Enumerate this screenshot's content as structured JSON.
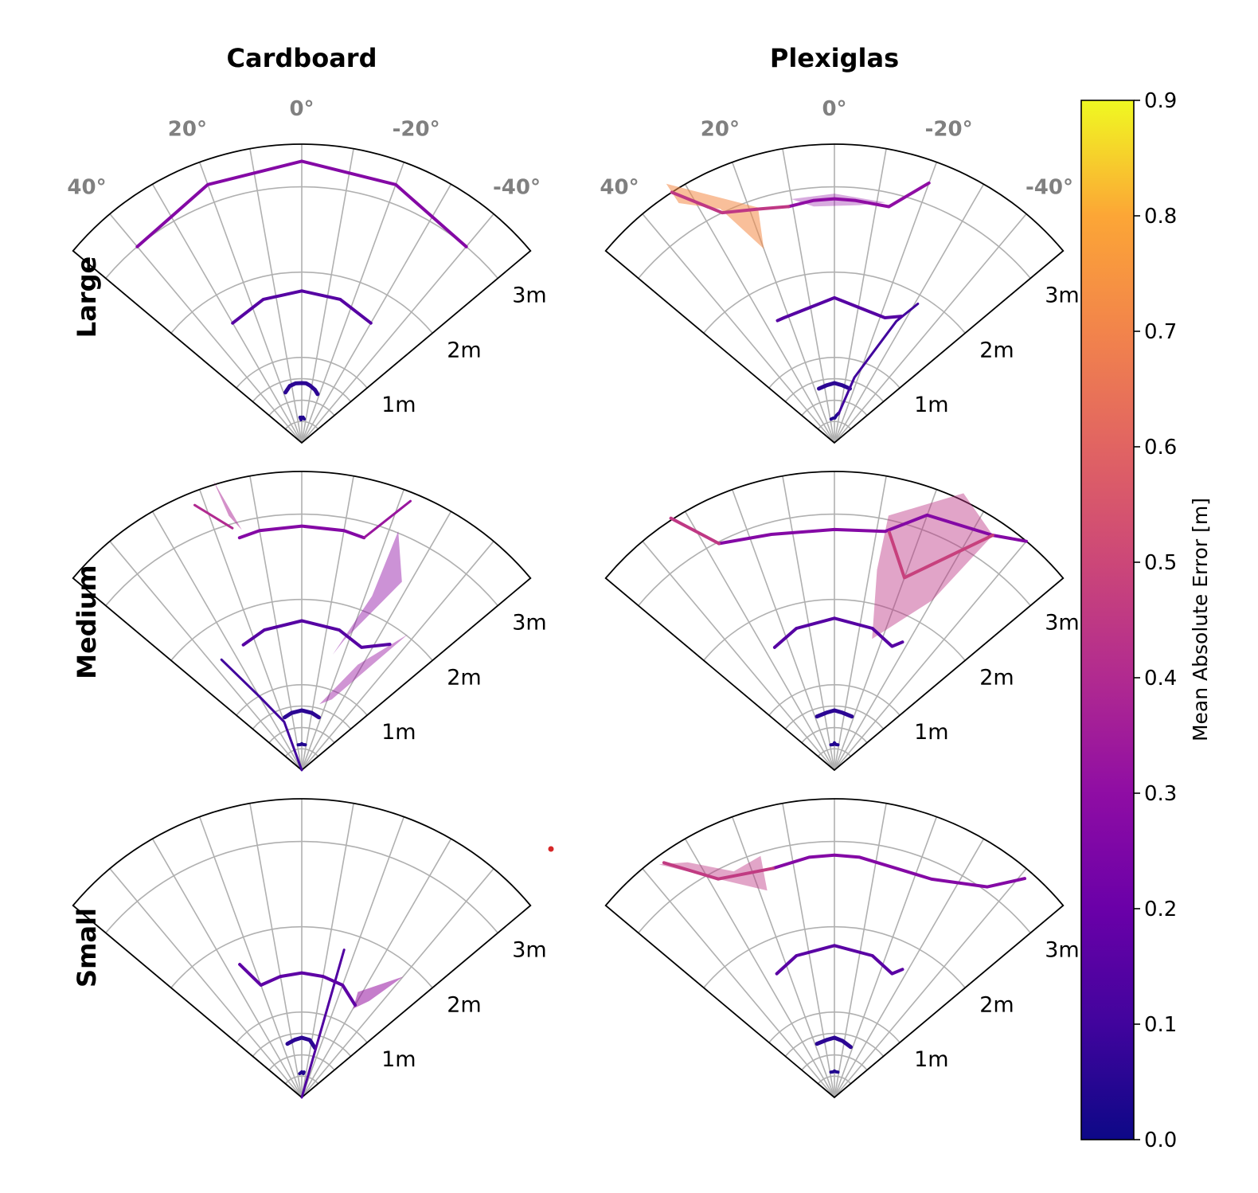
{
  "figure": {
    "columns": [
      "Cardboard",
      "Plexiglas"
    ],
    "rows": [
      "Large",
      "Medium",
      "Small"
    ]
  },
  "chart_data": {
    "type": "polar-wedge",
    "theta_ticks": [
      "40°",
      "20°",
      "0°",
      "-20°",
      "-40°"
    ],
    "radial_ticks": [
      "1m",
      "2m",
      "3m"
    ],
    "theta_range_deg": [
      -50,
      50
    ],
    "radial_range_m": [
      0,
      3.5
    ],
    "colorbar": {
      "title": "Mean Absolute Error [m]",
      "range": [
        0,
        0.9
      ],
      "ticks": [
        "0.0",
        "0.1",
        "0.2",
        "0.3",
        "0.4",
        "0.5",
        "0.6",
        "0.7",
        "0.8",
        "0.9"
      ],
      "colormap": "plasma"
    },
    "panels": [
      {
        "row": "Large",
        "col": "Cardboard",
        "lines": [
          {
            "mae": 0.04,
            "width": 4,
            "pts": [
              [
                -6,
                0.28
              ],
              [
                -3,
                0.3
              ],
              [
                -1,
                0.29
              ],
              [
                1,
                0.3
              ],
              [
                2,
                0.27
              ],
              [
                4,
                0.3
              ]
            ]
          },
          {
            "mae": 0.06,
            "width": 5,
            "pts": [
              [
                18,
                0.62
              ],
              [
                12,
                0.68
              ],
              [
                6,
                0.7
              ],
              [
                0,
                0.7
              ],
              [
                -4,
                0.7
              ],
              [
                -8,
                0.68
              ],
              [
                -14,
                0.64
              ],
              [
                -18,
                0.6
              ]
            ]
          },
          {
            "mae": 0.15,
            "width": 4,
            "pts": [
              [
                30,
                1.62
              ],
              [
                15,
                1.74
              ],
              [
                0,
                1.78
              ],
              [
                -15,
                1.74
              ],
              [
                -30,
                1.62
              ]
            ]
          },
          {
            "mae": 0.27,
            "width": 4,
            "pts": [
              [
                40,
                3.0
              ],
              [
                20,
                3.22
              ],
              [
                0,
                3.3
              ],
              [
                -20,
                3.22
              ],
              [
                -40,
                3.0
              ]
            ]
          }
        ]
      },
      {
        "row": "Large",
        "col": "Plexiglas",
        "lines": [
          {
            "mae": 0.04,
            "width": 4,
            "pts": [
              [
                8,
                0.28
              ],
              [
                3,
                0.29
              ],
              [
                -1,
                0.29
              ],
              [
                -4,
                0.32
              ],
              [
                -8,
                0.35
              ]
            ]
          },
          {
            "mae": 0.06,
            "width": 5,
            "pts": [
              [
                16,
                0.66
              ],
              [
                8,
                0.68
              ],
              [
                0,
                0.7
              ],
              [
                -8,
                0.68
              ],
              [
                -16,
                0.66
              ]
            ]
          },
          {
            "mae": 0.1,
            "width": 3,
            "pts": [
              [
                -8,
                0.34
              ],
              [
                -17,
                0.8
              ],
              [
                -27,
                1.6
              ],
              [
                -31,
                1.9
              ]
            ]
          },
          {
            "mae": 0.15,
            "width": 4,
            "pts": [
              [
                25,
                1.58
              ],
              [
                22,
                1.58
              ],
              [
                0,
                1.7
              ],
              [
                -22,
                1.58
              ],
              [
                -28,
                1.68
              ]
            ]
          },
          {
            "mae": 0.3,
            "width": 4,
            "pts": [
              [
                11,
                2.82
              ],
              [
                5,
                2.85
              ],
              [
                0,
                2.86
              ],
              [
                -5,
                2.85
              ],
              [
                -13,
                2.84
              ],
              [
                -20,
                3.24
              ]
            ]
          },
          {
            "mae": 0.45,
            "width": 4,
            "pts": [
              [
                33,
                3.5
              ],
              [
                26,
                3.0
              ],
              [
                18,
                2.88
              ],
              [
                11,
                2.82
              ]
            ]
          }
        ]
      },
      {
        "row": "Medium",
        "col": "Cardboard",
        "lines": [
          {
            "mae": 0.04,
            "width": 4,
            "pts": [
              [
                8,
                0.3
              ],
              [
                2,
                0.3
              ],
              [
                0,
                0.31
              ],
              [
                -3,
                0.3
              ],
              [
                -8,
                0.3
              ]
            ]
          },
          {
            "mae": 0.06,
            "width": 5,
            "pts": [
              [
                18,
                0.65
              ],
              [
                10,
                0.68
              ],
              [
                0,
                0.7
              ],
              [
                -10,
                0.68
              ],
              [
                -18,
                0.65
              ]
            ]
          },
          {
            "mae": 0.1,
            "width": 3,
            "pts": [
              [
                36,
                1.6
              ],
              [
                30,
                1.0
              ],
              [
                20,
                0.6
              ],
              [
                0,
                0.0
              ]
            ]
          },
          {
            "mae": 0.15,
            "width": 4,
            "pts": [
              [
                25,
                1.62
              ],
              [
                15,
                1.7
              ],
              [
                0,
                1.75
              ],
              [
                -15,
                1.7
              ],
              [
                -26,
                1.6
              ],
              [
                -35,
                1.8
              ]
            ]
          },
          {
            "mae": 0.27,
            "width": 4,
            "pts": [
              [
                15,
                2.82
              ],
              [
                10,
                2.85
              ],
              [
                0,
                2.86
              ],
              [
                -10,
                2.85
              ],
              [
                -15,
                2.82
              ]
            ]
          },
          {
            "mae": 0.4,
            "width": 3,
            "pts": [
              [
                22,
                3.35
              ],
              [
                16,
                2.95
              ]
            ]
          },
          {
            "mae": 0.33,
            "width": 3,
            "pts": [
              [
                -15,
                2.82
              ],
              [
                -22,
                3.4
              ]
            ]
          }
        ]
      },
      {
        "row": "Medium",
        "col": "Plexiglas",
        "lines": [
          {
            "mae": 0.04,
            "width": 4,
            "pts": [
              [
                8,
                0.3
              ],
              [
                2,
                0.3
              ],
              [
                0,
                0.32
              ],
              [
                -3,
                0.3
              ],
              [
                -8,
                0.3
              ]
            ]
          },
          {
            "mae": 0.06,
            "width": 5,
            "pts": [
              [
                18,
                0.66
              ],
              [
                8,
                0.68
              ],
              [
                0,
                0.7
              ],
              [
                -8,
                0.68
              ],
              [
                -18,
                0.66
              ]
            ]
          },
          {
            "mae": 0.15,
            "width": 4,
            "pts": [
              [
                26,
                1.6
              ],
              [
                15,
                1.72
              ],
              [
                0,
                1.78
              ],
              [
                -15,
                1.72
              ],
              [
                -25,
                1.6
              ],
              [
                -28,
                1.7
              ]
            ]
          },
          {
            "mae": 0.27,
            "width": 4,
            "pts": [
              [
                27,
                2.98
              ],
              [
                15,
                2.86
              ],
              [
                0,
                2.82
              ],
              [
                -12,
                2.86
              ],
              [
                -20,
                3.18
              ],
              [
                -34,
                3.32
              ],
              [
                -40,
                3.5
              ]
            ]
          },
          {
            "mae": 0.45,
            "width": 4,
            "pts": [
              [
                33,
                3.52
              ],
              [
                27,
                2.98
              ]
            ]
          },
          {
            "mae": 0.48,
            "width": 4,
            "pts": [
              [
                -13,
                2.86
              ],
              [
                -20,
                2.4
              ],
              [
                -34,
                3.32
              ]
            ]
          }
        ]
      },
      {
        "row": "Small",
        "col": "Cardboard",
        "lines": [
          {
            "mae": 0.04,
            "width": 4,
            "pts": [
              [
                5,
                0.28
              ],
              [
                0,
                0.3
              ],
              [
                -4,
                0.28
              ],
              [
                -5,
                0.3
              ]
            ]
          },
          {
            "mae": 0.06,
            "width": 5,
            "pts": [
              [
                15,
                0.65
              ],
              [
                7,
                0.68
              ],
              [
                0,
                0.7
              ],
              [
                -8,
                0.68
              ],
              [
                -15,
                0.6
              ]
            ]
          },
          {
            "mae": 0.14,
            "width": 3,
            "pts": [
              [
                0,
                0.0
              ],
              [
                -16,
                1.8
              ]
            ]
          },
          {
            "mae": 0.17,
            "width": 4,
            "pts": [
              [
                25,
                1.72
              ],
              [
                20,
                1.4
              ],
              [
                10,
                1.44
              ],
              [
                0,
                1.46
              ],
              [
                -10,
                1.44
              ],
              [
                -20,
                1.4
              ],
              [
                -30,
                1.25
              ]
            ]
          }
        ]
      },
      {
        "row": "Small",
        "col": "Plexiglas",
        "lines": [
          {
            "mae": 0.04,
            "width": 4,
            "pts": [
              [
                8,
                0.3
              ],
              [
                3,
                0.3
              ],
              [
                0,
                0.31
              ],
              [
                -4,
                0.3
              ],
              [
                -8,
                0.3
              ]
            ]
          },
          {
            "mae": 0.06,
            "width": 5,
            "pts": [
              [
                18,
                0.66
              ],
              [
                8,
                0.68
              ],
              [
                0,
                0.7
              ],
              [
                -8,
                0.67
              ],
              [
                -18,
                0.62
              ]
            ]
          },
          {
            "mae": 0.16,
            "width": 4,
            "pts": [
              [
                25,
                1.6
              ],
              [
                15,
                1.72
              ],
              [
                0,
                1.78
              ],
              [
                -15,
                1.72
              ],
              [
                -25,
                1.6
              ],
              [
                -28,
                1.7
              ]
            ]
          },
          {
            "mae": 0.27,
            "width": 4,
            "pts": [
              [
                15,
                2.78
              ],
              [
                6,
                2.83
              ],
              [
                0,
                2.84
              ],
              [
                -6,
                2.83
              ],
              [
                -18,
                2.78
              ],
              [
                -24,
                2.8
              ],
              [
                -36,
                3.05
              ],
              [
                -41,
                3.4
              ]
            ]
          },
          {
            "mae": 0.46,
            "width": 4,
            "pts": [
              [
                36,
                3.4
              ],
              [
                28,
                2.9
              ],
              [
                15,
                2.78
              ]
            ]
          }
        ]
      }
    ],
    "shaded_bands": [
      {
        "row": "Large",
        "col": "Plexiglas",
        "mae": 0.72,
        "opacity": 0.55,
        "pts": [
          [
            33,
            3.62
          ],
          [
            18,
            2.9
          ],
          [
            20,
            2.42
          ],
          [
            26,
            3.05
          ],
          [
            33,
            3.35
          ]
        ]
      },
      {
        "row": "Large",
        "col": "Plexiglas",
        "mae": 0.3,
        "opacity": 0.35,
        "pts": [
          [
            10,
            2.9
          ],
          [
            0,
            2.92
          ],
          [
            -12,
            2.88
          ],
          [
            -6,
            2.8
          ],
          [
            5,
            2.78
          ]
        ]
      },
      {
        "row": "Medium",
        "col": "Cardboard",
        "mae": 0.38,
        "opacity": 0.5,
        "pts": [
          [
            17,
            3.55
          ],
          [
            14,
            2.9
          ],
          [
            16,
            3.1
          ]
        ]
      },
      {
        "row": "Medium",
        "col": "Cardboard",
        "mae": 0.3,
        "opacity": 0.45,
        "pts": [
          [
            -22,
            3.02
          ],
          [
            -28,
            2.5
          ],
          [
            -18,
            1.6
          ],
          [
            -15,
            1.4
          ],
          [
            -22,
            2.2
          ]
        ]
      },
      {
        "row": "Medium",
        "col": "Cardboard",
        "mae": 0.32,
        "opacity": 0.45,
        "pts": [
          [
            -38,
            2.02
          ],
          [
            -23,
            0.9
          ],
          [
            -15,
            0.8
          ],
          [
            -28,
            1.4
          ]
        ]
      },
      {
        "row": "Medium",
        "col": "Plexiglas",
        "mae": 0.44,
        "opacity": 0.45,
        "pts": [
          [
            -12,
            3.05
          ],
          [
            -25,
            3.58
          ],
          [
            -34,
            3.32
          ],
          [
            -30,
            2.3
          ],
          [
            -16,
            1.6
          ],
          [
            -12,
            2.4
          ]
        ]
      },
      {
        "row": "Small",
        "col": "Cardboard",
        "mae": 0.32,
        "opacity": 0.55,
        "pts": [
          [
            -28,
            1.4
          ],
          [
            -40,
            1.85
          ],
          [
            -35,
            1.38
          ],
          [
            -30,
            1.2
          ]
        ]
      },
      {
        "row": "Small",
        "col": "Plexiglas",
        "mae": 0.45,
        "opacity": 0.45,
        "pts": [
          [
            37,
            3.42
          ],
          [
            28,
            2.9
          ],
          [
            18,
            2.55
          ],
          [
            17,
            2.96
          ],
          [
            24,
            2.9
          ],
          [
            32,
            3.25
          ]
        ]
      }
    ]
  }
}
